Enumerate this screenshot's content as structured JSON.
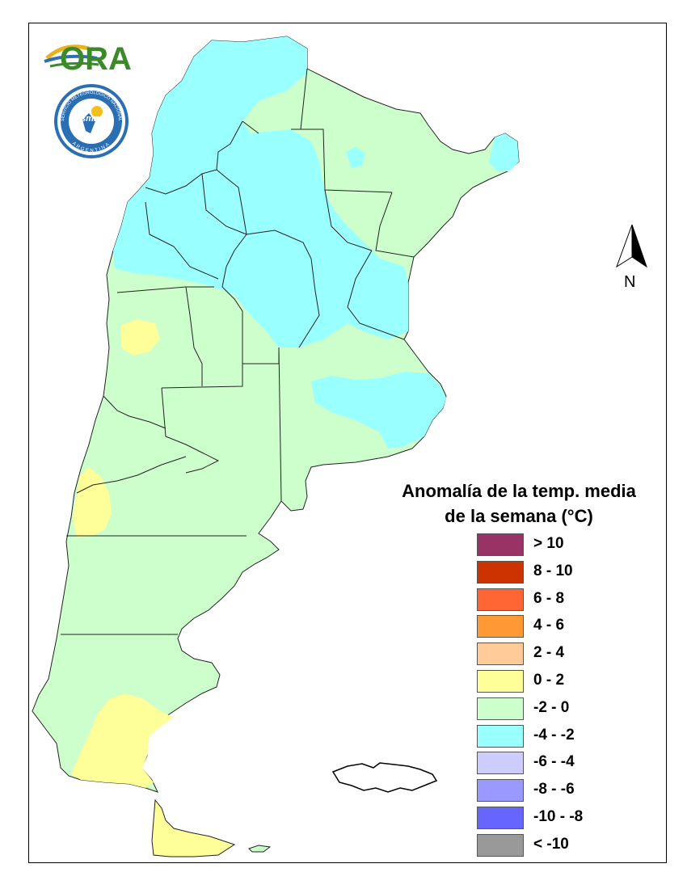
{
  "legend": {
    "title_line1": "Anomalía de la temp. media",
    "title_line2": "de la semana (°C)",
    "items": [
      {
        "label": "> 10",
        "color": "#993366"
      },
      {
        "label": "8 - 10",
        "color": "#cc3300"
      },
      {
        "label": "6 - 8",
        "color": "#ff6633"
      },
      {
        "label": "4 - 6",
        "color": "#ff9933"
      },
      {
        "label": "2 - 4",
        "color": "#ffcc99"
      },
      {
        "label": "0 - 2",
        "color": "#ffff99"
      },
      {
        "label": "-2 - 0",
        "color": "#ccffcc"
      },
      {
        "label": "-4 - -2",
        "color": "#99ffff"
      },
      {
        "label": "-6 - -4",
        "color": "#ccccff"
      },
      {
        "label": "-8 - -6",
        "color": "#9999ff"
      },
      {
        "label": "-10 - -8",
        "color": "#6666ff"
      },
      {
        "label": "< -10",
        "color": "#999999"
      }
    ]
  },
  "north_arrow": {
    "label": "N"
  },
  "logos": {
    "ora": "ORA",
    "smn_text": "SERVICIO METEOROLÓGICO NACIONAL",
    "smn_country": "ARGENTINA",
    "smn_abbr": "smn"
  },
  "map": {
    "colors": {
      "green": "#ccffcc",
      "cyan": "#99ffff",
      "yellow": "#ffff99",
      "border": "#222222"
    }
  }
}
